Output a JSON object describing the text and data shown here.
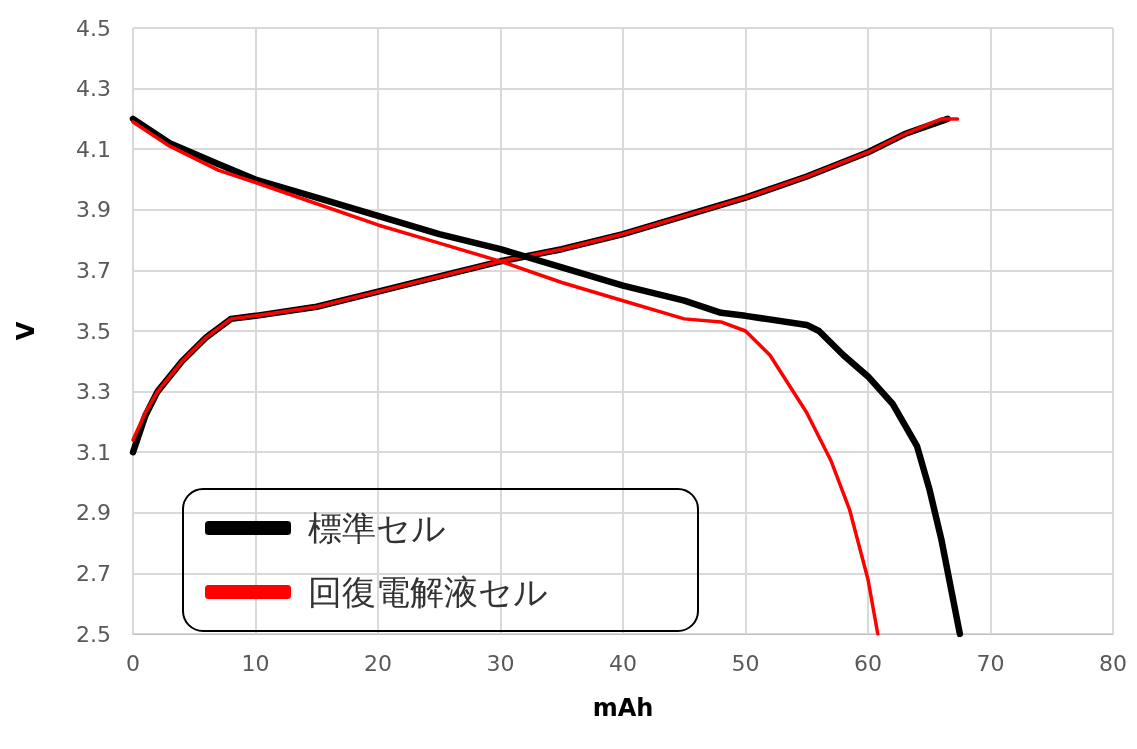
{
  "chart_data": {
    "type": "line",
    "xlabel": "mAh",
    "ylabel": "V",
    "xlim": [
      0,
      80
    ],
    "xticks": [
      0,
      10,
      20,
      30,
      40,
      50,
      60,
      70,
      80
    ],
    "ylim": [
      2.5,
      4.5
    ],
    "yticks": [
      {
        "value": 2.5,
        "label": "2.5"
      },
      {
        "value": 2.7,
        "label": "2.7"
      },
      {
        "value": 2.9,
        "label": "2.9"
      },
      {
        "value": 3.1,
        "label": "3.1"
      },
      {
        "value": 3.3,
        "label": "3.3"
      },
      {
        "value": 3.5,
        "label": "3.5"
      },
      {
        "value": 3.7,
        "label": "3.7"
      },
      {
        "value": 3.9,
        "label": "3.9"
      },
      {
        "value": 4.1,
        "label": "4.1"
      },
      {
        "value": 4.3,
        "label": "4.3"
      },
      {
        "value": 4.5,
        "label": "4.5"
      }
    ],
    "grid": true,
    "legend": "bottom left",
    "marker": "none",
    "line_style": "solid",
    "series": [
      {
        "name": "標準セル",
        "color": "#000000",
        "x": [
          0,
          1,
          2,
          4,
          6,
          8,
          10,
          15,
          20,
          25,
          30,
          35,
          40,
          45,
          50,
          55,
          60,
          63,
          66.5
        ],
        "values": [
          3.1,
          3.22,
          3.3,
          3.4,
          3.48,
          3.54,
          3.55,
          3.58,
          3.63,
          3.68,
          3.73,
          3.77,
          3.82,
          3.88,
          3.94,
          4.01,
          4.09,
          4.15,
          4.2
        ]
      },
      {
        "name": "回復電解液セル",
        "color": "#ff0000",
        "x": [
          0,
          1,
          2,
          4,
          6,
          8,
          10,
          15,
          20,
          25,
          30,
          35,
          40,
          45,
          50,
          55,
          60,
          63,
          66,
          67.3
        ],
        "values": [
          3.14,
          3.23,
          3.3,
          3.4,
          3.48,
          3.54,
          3.55,
          3.58,
          3.63,
          3.68,
          3.73,
          3.77,
          3.82,
          3.88,
          3.94,
          4.01,
          4.09,
          4.15,
          4.2,
          4.2
        ]
      },
      {
        "color": "#000000",
        "x": [
          0,
          3,
          7,
          10,
          15,
          20,
          25,
          30,
          35,
          40,
          45,
          48,
          50,
          55,
          56,
          58,
          60,
          62,
          64,
          65,
          66,
          67.5
        ],
        "values": [
          4.2,
          4.12,
          4.05,
          4.0,
          3.94,
          3.88,
          3.82,
          3.77,
          3.71,
          3.65,
          3.6,
          3.56,
          3.55,
          3.52,
          3.5,
          3.42,
          3.35,
          3.26,
          3.12,
          2.98,
          2.81,
          2.5
        ]
      },
      {
        "color": "#ff0000",
        "x": [
          0,
          3,
          7,
          10,
          15,
          20,
          25,
          30,
          35,
          40,
          45,
          48,
          50,
          52,
          55,
          57,
          58.5,
          60,
          60.8
        ],
        "values": [
          4.19,
          4.11,
          4.03,
          3.99,
          3.92,
          3.85,
          3.79,
          3.73,
          3.66,
          3.6,
          3.54,
          3.53,
          3.5,
          3.42,
          3.23,
          3.07,
          2.91,
          2.68,
          2.5
        ]
      }
    ]
  }
}
